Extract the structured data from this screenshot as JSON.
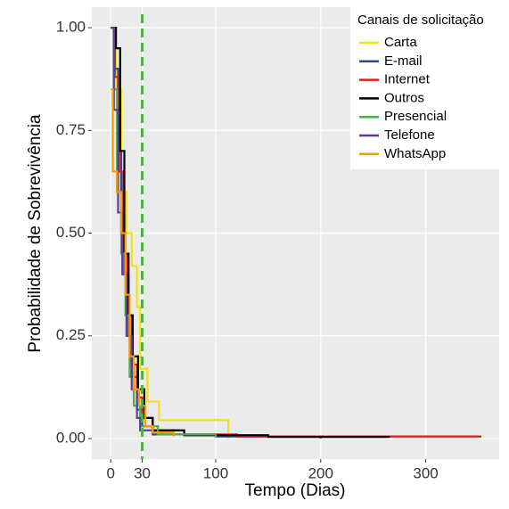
{
  "chart_data": {
    "type": "step",
    "x_label": "Tempo (Dias)",
    "y_label": "Probabilidade de Sobrevivência",
    "legend_title": "Canais de solicitação",
    "legend_position": "top-right",
    "grid": true,
    "xlim": [
      -18,
      370
    ],
    "ylim": [
      -0.05,
      1.05
    ],
    "xticks": [
      0,
      30,
      100,
      200,
      300
    ],
    "yticks": [
      {
        "value": 0,
        "label": "0.00"
      },
      {
        "value": 0.25,
        "label": "0.25"
      },
      {
        "value": 0.5,
        "label": "0.50"
      },
      {
        "value": 0.75,
        "label": "0.75"
      },
      {
        "value": 1,
        "label": "1.00"
      }
    ],
    "reference_line": {
      "x": 30,
      "color": "#4DAF4A"
    },
    "series": [
      {
        "name": "Carta",
        "color": "#F2E11A",
        "x": [
          0,
          5,
          10,
          15,
          20,
          25,
          28,
          35,
          46,
          112
        ],
        "values": [
          1,
          0.85,
          0.6,
          0.5,
          0.42,
          0.32,
          0.17,
          0.09,
          0.045,
          0
        ]
      },
      {
        "name": "E-mail",
        "color": "#2A4B9B",
        "x": [
          0,
          3,
          7,
          10,
          13,
          17,
          20,
          25,
          30,
          40,
          100,
          200
        ],
        "values": [
          1,
          0.9,
          0.7,
          0.5,
          0.4,
          0.25,
          0.15,
          0.07,
          0.03,
          0.01,
          0.005,
          0
        ]
      },
      {
        "name": "Internet",
        "color": "#E41A1C",
        "x": [
          0,
          4,
          8,
          12,
          16,
          20,
          25,
          30,
          40,
          60,
          120,
          352
        ],
        "values": [
          1,
          0.88,
          0.65,
          0.45,
          0.3,
          0.18,
          0.1,
          0.05,
          0.02,
          0.01,
          0.005,
          0.002
        ]
      },
      {
        "name": "Outros",
        "color": "#000000",
        "x": [
          0,
          5,
          9,
          13,
          17,
          21,
          26,
          32,
          40,
          70,
          150,
          265
        ],
        "values": [
          1,
          0.95,
          0.7,
          0.45,
          0.3,
          0.2,
          0.12,
          0.05,
          0.02,
          0.008,
          0.004,
          0.002
        ]
      },
      {
        "name": "Presencial",
        "color": "#4DAF4A",
        "x": [
          0,
          3,
          6,
          10,
          14,
          18,
          22,
          28,
          45,
          100
        ],
        "values": [
          1,
          0.85,
          0.6,
          0.45,
          0.3,
          0.15,
          0.08,
          0.03,
          0.01,
          0.003
        ]
      },
      {
        "name": "Telefone",
        "color": "#5E3C99",
        "x": [
          0,
          3,
          7,
          11,
          15,
          20,
          25,
          28,
          40
        ],
        "values": [
          1,
          0.8,
          0.55,
          0.4,
          0.25,
          0.12,
          0.05,
          0.02,
          0.01
        ]
      },
      {
        "name": "WhatsApp",
        "color": "#FF9900",
        "x": [
          0,
          2,
          6,
          10,
          14,
          18,
          22,
          27,
          33,
          40,
          60
        ],
        "values": [
          0.85,
          0.65,
          0.6,
          0.5,
          0.35,
          0.2,
          0.12,
          0.08,
          0.03,
          0.015,
          0.005
        ]
      }
    ]
  }
}
